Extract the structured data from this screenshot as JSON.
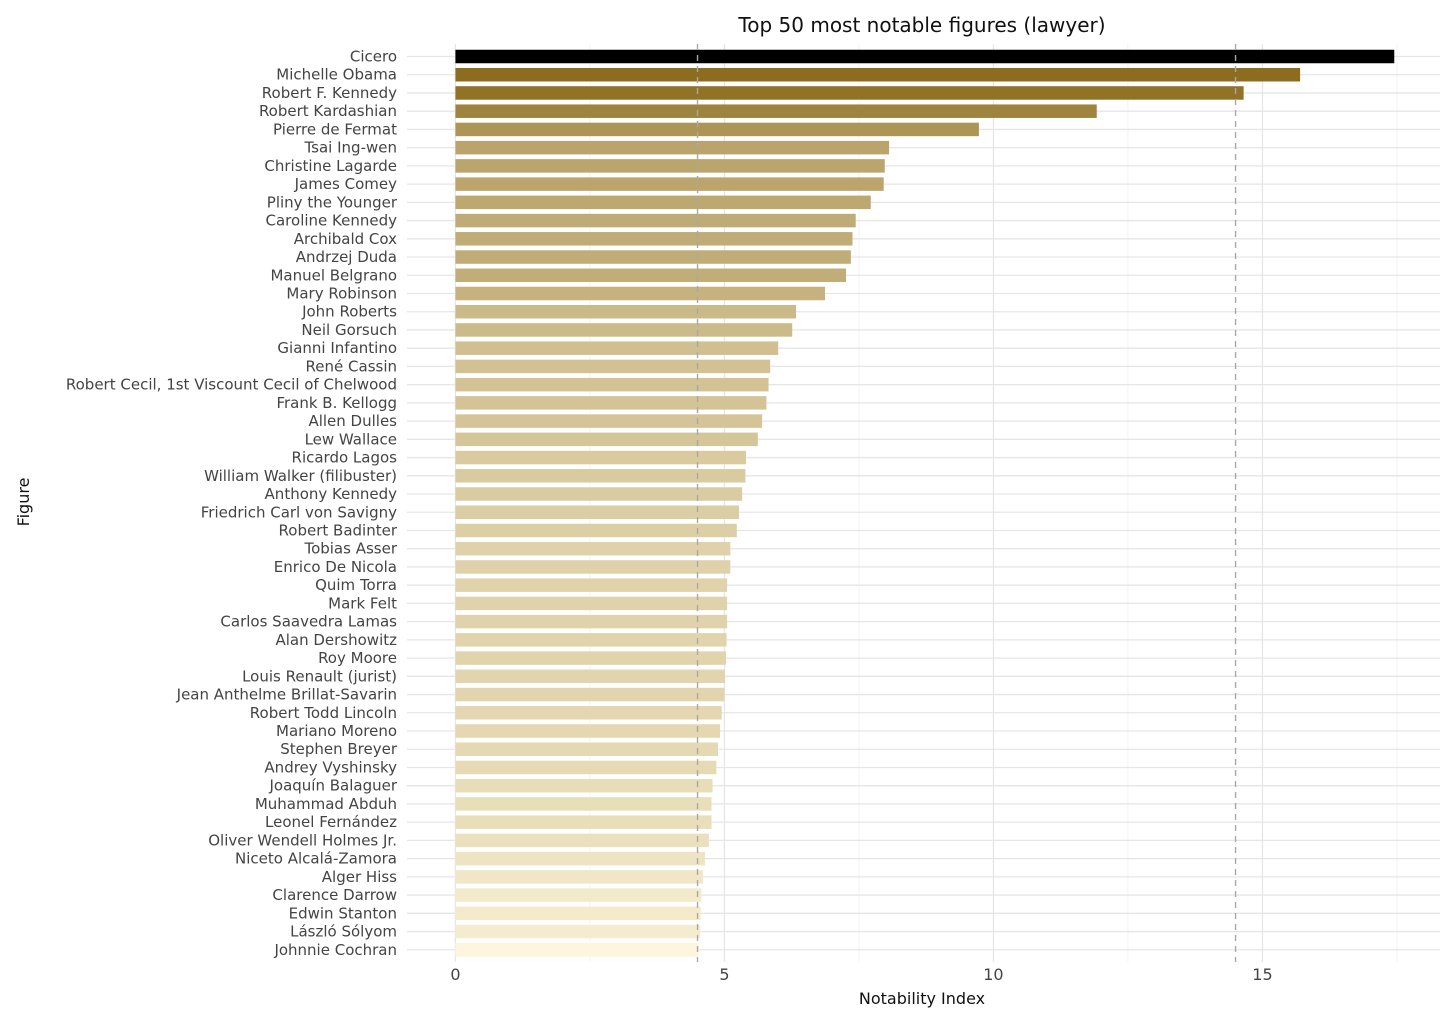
{
  "chart_data": {
    "type": "bar",
    "orientation": "horizontal",
    "title": "Top 50 most notable figures (lawyer)",
    "xlabel": "Notability Index",
    "ylabel": "Figure",
    "xlim": [
      -0.9,
      18.3
    ],
    "xticks": [
      0,
      5,
      10,
      15
    ],
    "grid": true,
    "legend": "none",
    "reference_lines": [
      4.5,
      14.5
    ],
    "color_scale": {
      "high": "#8c6d1f",
      "low": "#fdf6dc",
      "top": "#000000"
    },
    "categories": [
      "Cicero",
      "Michelle Obama",
      "Robert F. Kennedy",
      "Robert Kardashian",
      "Pierre de Fermat",
      "Tsai Ing-wen",
      "Christine Lagarde",
      "James Comey",
      "Pliny the Younger",
      "Caroline Kennedy",
      "Archibald Cox",
      "Andrzej Duda",
      "Manuel Belgrano",
      "Mary Robinson",
      "John Roberts",
      "Neil Gorsuch",
      "Gianni Infantino",
      "René Cassin",
      "Robert Cecil, 1st Viscount Cecil of Chelwood",
      "Frank B. Kellogg",
      "Allen Dulles",
      "Lew Wallace",
      "Ricardo Lagos",
      "William Walker (filibuster)",
      "Anthony Kennedy",
      "Friedrich Carl von Savigny",
      "Robert Badinter",
      "Tobias Asser",
      "Enrico De Nicola",
      "Quim Torra",
      "Mark Felt",
      "Carlos Saavedra Lamas",
      "Alan Dershowitz",
      "Roy Moore",
      "Louis Renault (jurist)",
      "Jean Anthelme Brillat-Savarin",
      "Robert Todd Lincoln",
      "Mariano Moreno",
      "Stephen Breyer",
      "Andrey Vyshinsky",
      "Joaquín Balaguer",
      "Muhammad Abduh",
      "Leonel Fernández",
      "Oliver Wendell Holmes Jr.",
      "Niceto Alcalá-Zamora",
      "Alger Hiss",
      "Clarence Darrow",
      "Edwin Stanton",
      "László Sólyom",
      "Johnnie Cochran"
    ],
    "values": [
      17.45,
      15.7,
      14.65,
      11.92,
      9.73,
      8.06,
      7.98,
      7.96,
      7.72,
      7.44,
      7.38,
      7.35,
      7.26,
      6.87,
      6.33,
      6.26,
      6.0,
      5.85,
      5.82,
      5.78,
      5.7,
      5.62,
      5.4,
      5.39,
      5.33,
      5.27,
      5.23,
      5.11,
      5.11,
      5.05,
      5.05,
      5.05,
      5.04,
      5.03,
      5.01,
      5.0,
      4.95,
      4.92,
      4.88,
      4.85,
      4.78,
      4.76,
      4.76,
      4.71,
      4.64,
      4.6,
      4.57,
      4.56,
      4.55,
      4.52
    ]
  }
}
